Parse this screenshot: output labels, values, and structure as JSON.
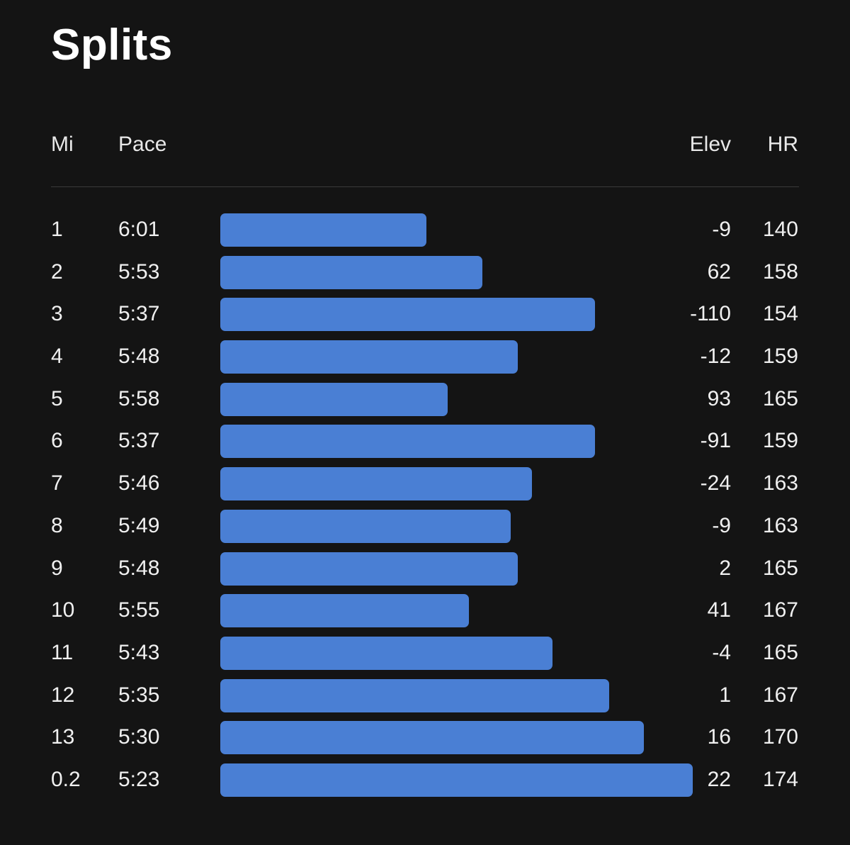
{
  "title": "Splits",
  "headers": {
    "mi": "Mi",
    "pace": "Pace",
    "elev": "Elev",
    "hr": "HR"
  },
  "colors": {
    "background": "#141414",
    "bar": "#4a7fd4",
    "divider": "#3a3a3a"
  },
  "splits": [
    {
      "mi": "1",
      "pace": "6:01",
      "elev": "-9",
      "hr": "140",
      "pace_seconds": 361
    },
    {
      "mi": "2",
      "pace": "5:53",
      "elev": "62",
      "hr": "158",
      "pace_seconds": 353
    },
    {
      "mi": "3",
      "pace": "5:37",
      "elev": "-110",
      "hr": "154",
      "pace_seconds": 337
    },
    {
      "mi": "4",
      "pace": "5:48",
      "elev": "-12",
      "hr": "159",
      "pace_seconds": 348
    },
    {
      "mi": "5",
      "pace": "5:58",
      "elev": "93",
      "hr": "165",
      "pace_seconds": 358
    },
    {
      "mi": "6",
      "pace": "5:37",
      "elev": "-91",
      "hr": "159",
      "pace_seconds": 337
    },
    {
      "mi": "7",
      "pace": "5:46",
      "elev": "-24",
      "hr": "163",
      "pace_seconds": 346
    },
    {
      "mi": "8",
      "pace": "5:49",
      "elev": "-9",
      "hr": "163",
      "pace_seconds": 349
    },
    {
      "mi": "9",
      "pace": "5:48",
      "elev": "2",
      "hr": "165",
      "pace_seconds": 348
    },
    {
      "mi": "10",
      "pace": "5:55",
      "elev": "41",
      "hr": "167",
      "pace_seconds": 355
    },
    {
      "mi": "11",
      "pace": "5:43",
      "elev": "-4",
      "hr": "165",
      "pace_seconds": 343
    },
    {
      "mi": "12",
      "pace": "5:35",
      "elev": "1",
      "hr": "167",
      "pace_seconds": 335
    },
    {
      "mi": "13",
      "pace": "5:30",
      "elev": "16",
      "hr": "170",
      "pace_seconds": 330
    },
    {
      "mi": "0.2",
      "pace": "5:23",
      "elev": "22",
      "hr": "174",
      "pace_seconds": 323
    }
  ]
}
